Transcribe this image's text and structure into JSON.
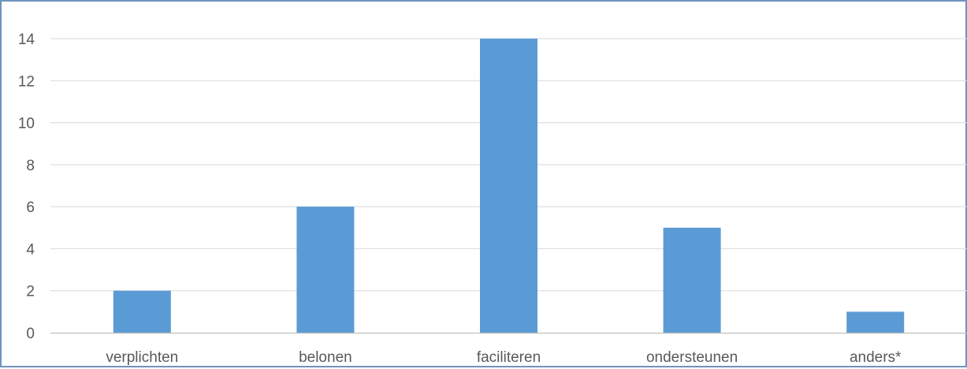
{
  "chart_data": {
    "type": "bar",
    "title": "",
    "xlabel": "",
    "ylabel": "",
    "categories": [
      "verplichten",
      "belonen",
      "faciliteren",
      "ondersteunen",
      "anders*"
    ],
    "values": [
      2,
      6,
      14,
      5,
      1
    ],
    "ylim": [
      0,
      14
    ],
    "yticks": [
      0,
      2,
      4,
      6,
      8,
      10,
      12,
      14
    ],
    "grid": true,
    "legend": "none",
    "bar_color": "#5b9bd5",
    "frame_color": "#6f93bd"
  }
}
